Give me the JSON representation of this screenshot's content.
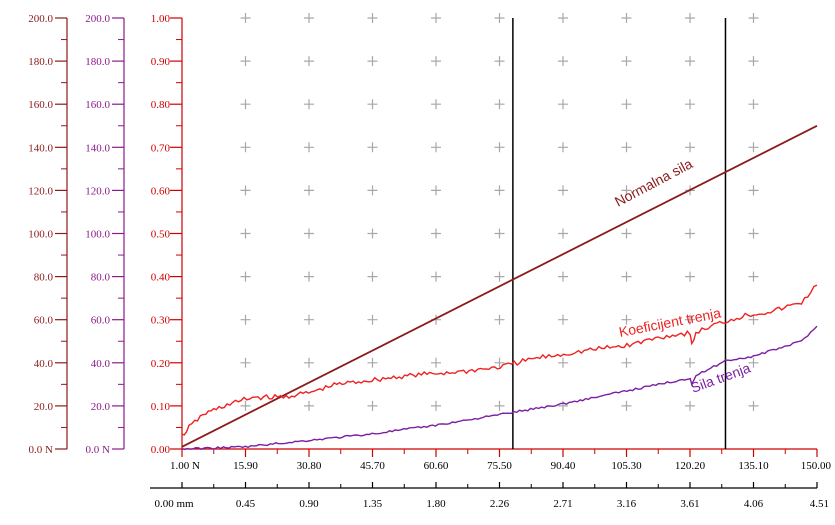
{
  "chart_data": {
    "type": "line",
    "axes": {
      "left_outer": {
        "color": "#8b1a1a",
        "ticks": [
          "0.0 N",
          "20.0",
          "40.0",
          "60.0",
          "80.0",
          "100.0",
          "120.0",
          "140.0",
          "160.0",
          "180.0",
          "200.0"
        ],
        "range": [
          0,
          200
        ]
      },
      "left_middle": {
        "color": "#8b1a8b",
        "ticks": [
          "0.0 N",
          "20.0",
          "40.0",
          "60.0",
          "80.0",
          "100.0",
          "120.0",
          "140.0",
          "160.0",
          "180.0",
          "200.0"
        ],
        "range": [
          0,
          200
        ]
      },
      "left_inner": {
        "color": "#d00000",
        "ticks": [
          "0.00",
          "0.10",
          "0.20",
          "0.30",
          "0.40",
          "0.50",
          "0.60",
          "0.70",
          "0.80",
          "0.90",
          "1.00"
        ],
        "range": [
          0,
          1
        ]
      },
      "x_force": {
        "color": "#d00000",
        "ticks": [
          "1.00 N",
          "15.90",
          "30.80",
          "45.70",
          "60.60",
          "75.50",
          "90.40",
          "105.30",
          "120.20",
          "135.10",
          "150.00"
        ],
        "range": [
          1.0,
          150.0
        ]
      },
      "x_distance": {
        "color": "#000000",
        "ticks": [
          "0.00 mm",
          "0.45",
          "0.90",
          "1.35",
          "1.80",
          "2.26",
          "2.71",
          "3.16",
          "3.61",
          "4.06",
          "4.51"
        ],
        "range": [
          0.0,
          4.51
        ]
      }
    },
    "grid": "plus-markers",
    "markers_x": [
      2.35,
      3.86
    ],
    "series": [
      {
        "name": "Normalna sila",
        "color": "#8b1a1a",
        "axis": "left_outer",
        "x": [
          0.0,
          4.51
        ],
        "y": [
          1.0,
          150.0
        ]
      },
      {
        "name": "Koeficijent trenja",
        "color": "#ee2222",
        "axis": "left_inner",
        "x": [
          0.0,
          0.05,
          0.15,
          0.3,
          0.5,
          0.7,
          0.9,
          1.1,
          1.35,
          1.6,
          1.8,
          2.0,
          2.26,
          2.5,
          2.71,
          2.9,
          3.16,
          3.4,
          3.61,
          3.62,
          3.65,
          3.8,
          4.0,
          4.2,
          4.3,
          4.4,
          4.51
        ],
        "y": [
          0.03,
          0.05,
          0.08,
          0.1,
          0.12,
          0.12,
          0.13,
          0.15,
          0.16,
          0.17,
          0.175,
          0.18,
          0.19,
          0.21,
          0.22,
          0.23,
          0.24,
          0.26,
          0.27,
          0.24,
          0.27,
          0.29,
          0.31,
          0.32,
          0.33,
          0.34,
          0.38
        ]
      },
      {
        "name": "Sila trenja",
        "color": "#7b1fa2",
        "axis": "left_middle",
        "x": [
          0.0,
          0.45,
          0.9,
          1.35,
          1.8,
          2.26,
          2.71,
          3.16,
          3.61,
          3.62,
          3.65,
          3.86,
          4.06,
          4.3,
          4.4,
          4.51
        ],
        "y": [
          0.0,
          1.0,
          4.0,
          7.0,
          11.0,
          16.0,
          21.0,
          27.0,
          33.0,
          30.0,
          34.0,
          41.0,
          43.0,
          48.0,
          50.0,
          57.0
        ]
      }
    ]
  }
}
